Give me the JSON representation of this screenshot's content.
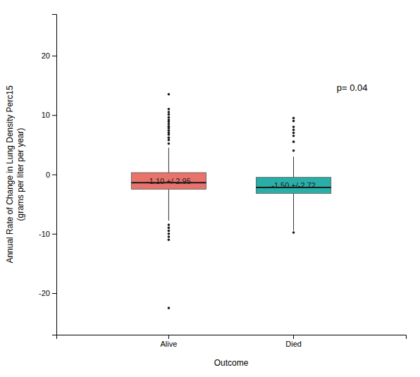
{
  "chart_data": {
    "type": "box",
    "categories": [
      "Alive",
      "Died"
    ],
    "colors": [
      "#E8736C",
      "#2AAFA8"
    ],
    "boxes": [
      {
        "median": -1.4,
        "q1": -2.5,
        "q3": 0.3,
        "whisker_low": -7.8,
        "whisker_high": 4.5,
        "outliers_high": [
          5.2,
          5.8,
          6.2,
          6.7,
          7.0,
          7.4,
          7.8,
          8.1,
          8.5,
          8.9,
          9.2,
          9.6,
          10.1,
          10.5,
          11.0,
          13.5
        ],
        "outliers_low": [
          -8.5,
          -9.0,
          -9.5,
          -10.0,
          -10.5,
          -11.0,
          -22.5
        ],
        "label": "-1.10 +/-2.95"
      },
      {
        "median": -2.2,
        "q1": -3.2,
        "q3": -0.5,
        "whisker_low": -9.5,
        "whisker_high": 3.0,
        "outliers_high": [
          4.0,
          5.5,
          6.5,
          7.0,
          7.5,
          8.0,
          9.0,
          9.5
        ],
        "outliers_low": [
          -9.8
        ],
        "label": "-1.50 +/-2.72"
      }
    ],
    "annotations": [
      {
        "text": "p= 0.04"
      }
    ],
    "xlabel": "Outcome",
    "ylabel": "Annual Rate of Change in Lung Density Perc15\n(grams per liter per year)",
    "ylim": [
      -27,
      27
    ],
    "yticks": [
      -20,
      -10,
      0,
      10,
      20
    ],
    "grid": false
  }
}
